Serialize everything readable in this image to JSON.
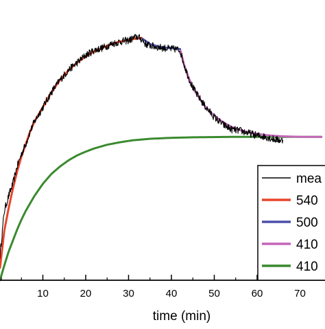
{
  "chart_data": {
    "type": "line",
    "xlabel": "time (min)",
    "ylabel": "",
    "xlim": [
      -2,
      75
    ],
    "ylim": [
      0,
      1.0
    ],
    "x_ticks": [
      10,
      20,
      30,
      40,
      50,
      60,
      70
    ],
    "x_tick_labels": [
      "10",
      "20",
      "30",
      "40",
      "50",
      "60",
      "70"
    ],
    "legend_position": "right",
    "series": [
      {
        "name": "mea",
        "color": "#000000",
        "kind": "noisy",
        "x": [
          0,
          1,
          2,
          3,
          4,
          5,
          6,
          7,
          8,
          9,
          10,
          12,
          14,
          16,
          18,
          20,
          22,
          24,
          26,
          28,
          30,
          32,
          33,
          34,
          36,
          38,
          40,
          41,
          42,
          43,
          44,
          45,
          46,
          48,
          50,
          52,
          54,
          56,
          58,
          60,
          62,
          64,
          66
        ],
        "y": [
          0.1,
          0.28,
          0.34,
          0.39,
          0.46,
          0.51,
          0.55,
          0.6,
          0.64,
          0.67,
          0.7,
          0.76,
          0.81,
          0.85,
          0.88,
          0.91,
          0.93,
          0.94,
          0.955,
          0.965,
          0.97,
          0.985,
          0.975,
          0.955,
          0.945,
          0.94,
          0.935,
          0.935,
          0.93,
          0.87,
          0.82,
          0.78,
          0.75,
          0.7,
          0.66,
          0.63,
          0.61,
          0.605,
          0.595,
          0.585,
          0.58,
          0.57,
          0.565
        ]
      },
      {
        "name": "540",
        "color": "#e8452c",
        "kind": "smooth",
        "x": [
          0,
          1,
          2,
          3,
          4,
          5,
          6,
          7,
          8,
          9,
          10,
          12,
          14,
          16,
          18,
          20,
          22,
          24,
          26,
          28,
          30,
          32,
          33
        ],
        "y": [
          0.05,
          0.2,
          0.29,
          0.37,
          0.44,
          0.5,
          0.55,
          0.6,
          0.64,
          0.67,
          0.7,
          0.76,
          0.81,
          0.85,
          0.88,
          0.905,
          0.925,
          0.94,
          0.955,
          0.965,
          0.972,
          0.978,
          0.98
        ]
      },
      {
        "name": "500",
        "color": "#4b4fa8",
        "kind": "smooth",
        "x": [
          33,
          35,
          37,
          39,
          41,
          42
        ],
        "y": [
          0.98,
          0.955,
          0.945,
          0.94,
          0.937,
          0.935
        ]
      },
      {
        "name": "410",
        "color": "#c465b8",
        "kind": "smooth",
        "x": [
          42,
          43,
          44,
          45,
          46,
          47,
          48,
          50,
          52,
          54,
          56,
          58,
          60,
          62,
          64,
          66,
          68,
          70,
          72,
          75
        ],
        "y": [
          0.935,
          0.87,
          0.82,
          0.78,
          0.75,
          0.725,
          0.7,
          0.665,
          0.64,
          0.62,
          0.607,
          0.598,
          0.592,
          0.587,
          0.584,
          0.582,
          0.581,
          0.58,
          0.58,
          0.58
        ]
      },
      {
        "name": "410",
        "color": "#3a8a2e",
        "kind": "smooth",
        "x": [
          0,
          1,
          2,
          3,
          4,
          5,
          6,
          7,
          8,
          10,
          12,
          14,
          16,
          18,
          20,
          22,
          25,
          28,
          31,
          35,
          40,
          45,
          50,
          55,
          60,
          65,
          70,
          75
        ],
        "y": [
          0.0,
          0.06,
          0.115,
          0.16,
          0.205,
          0.245,
          0.28,
          0.31,
          0.34,
          0.39,
          0.43,
          0.46,
          0.485,
          0.505,
          0.52,
          0.533,
          0.548,
          0.558,
          0.566,
          0.572,
          0.576,
          0.578,
          0.579,
          0.58,
          0.58,
          0.58,
          0.58,
          0.58
        ]
      }
    ]
  }
}
